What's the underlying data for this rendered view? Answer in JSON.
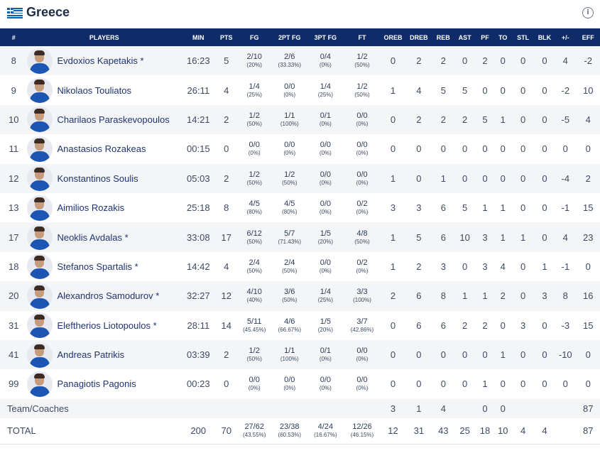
{
  "team": {
    "name": "Greece",
    "flag_icon": "greece-flag-icon",
    "info_icon": "info-icon"
  },
  "columns": [
    "#",
    "PLAYERS",
    "MIN",
    "PTS",
    "FG",
    "2PT FG",
    "3PT FG",
    "FT",
    "OREB",
    "DREB",
    "REB",
    "AST",
    "PF",
    "TO",
    "STL",
    "BLK",
    "+/-",
    "EFF"
  ],
  "players": [
    {
      "num": "8",
      "name": "Evdoxios Kapetakis *",
      "min": "16:23",
      "pts": "5",
      "fg": "2/10",
      "fg_pct": "(20%)",
      "fg2": "2/6",
      "fg2_pct": "(33.33%)",
      "fg3": "0/4",
      "fg3_pct": "(0%)",
      "ft": "1/2",
      "ft_pct": "(50%)",
      "oreb": "0",
      "dreb": "2",
      "reb": "2",
      "ast": "0",
      "pf": "2",
      "to": "0",
      "stl": "0",
      "blk": "0",
      "pm": "4",
      "eff": "-2"
    },
    {
      "num": "9",
      "name": "Nikolaos Touliatos",
      "min": "26:11",
      "pts": "4",
      "fg": "1/4",
      "fg_pct": "(25%)",
      "fg2": "0/0",
      "fg2_pct": "(0%)",
      "fg3": "1/4",
      "fg3_pct": "(25%)",
      "ft": "1/2",
      "ft_pct": "(50%)",
      "oreb": "1",
      "dreb": "4",
      "reb": "5",
      "ast": "5",
      "pf": "0",
      "to": "0",
      "stl": "0",
      "blk": "0",
      "pm": "-2",
      "eff": "10"
    },
    {
      "num": "10",
      "name": "Charilaos Paraskevopoulos",
      "min": "14:21",
      "pts": "2",
      "fg": "1/2",
      "fg_pct": "(50%)",
      "fg2": "1/1",
      "fg2_pct": "(100%)",
      "fg3": "0/1",
      "fg3_pct": "(0%)",
      "ft": "0/0",
      "ft_pct": "(0%)",
      "oreb": "0",
      "dreb": "2",
      "reb": "2",
      "ast": "2",
      "pf": "5",
      "to": "1",
      "stl": "0",
      "blk": "0",
      "pm": "-5",
      "eff": "4"
    },
    {
      "num": "11",
      "name": "Anastasios Rozakeas",
      "min": "00:15",
      "pts": "0",
      "fg": "0/0",
      "fg_pct": "(0%)",
      "fg2": "0/0",
      "fg2_pct": "(0%)",
      "fg3": "0/0",
      "fg3_pct": "(0%)",
      "ft": "0/0",
      "ft_pct": "(0%)",
      "oreb": "0",
      "dreb": "0",
      "reb": "0",
      "ast": "0",
      "pf": "0",
      "to": "0",
      "stl": "0",
      "blk": "0",
      "pm": "0",
      "eff": "0"
    },
    {
      "num": "12",
      "name": "Konstantinos Soulis",
      "min": "05:03",
      "pts": "2",
      "fg": "1/2",
      "fg_pct": "(50%)",
      "fg2": "1/2",
      "fg2_pct": "(50%)",
      "fg3": "0/0",
      "fg3_pct": "(0%)",
      "ft": "0/0",
      "ft_pct": "(0%)",
      "oreb": "1",
      "dreb": "0",
      "reb": "1",
      "ast": "0",
      "pf": "0",
      "to": "0",
      "stl": "0",
      "blk": "0",
      "pm": "-4",
      "eff": "2"
    },
    {
      "num": "13",
      "name": "Aimilios Rozakis",
      "min": "25:18",
      "pts": "8",
      "fg": "4/5",
      "fg_pct": "(80%)",
      "fg2": "4/5",
      "fg2_pct": "(80%)",
      "fg3": "0/0",
      "fg3_pct": "(0%)",
      "ft": "0/2",
      "ft_pct": "(0%)",
      "oreb": "3",
      "dreb": "3",
      "reb": "6",
      "ast": "5",
      "pf": "1",
      "to": "1",
      "stl": "0",
      "blk": "0",
      "pm": "-1",
      "eff": "15"
    },
    {
      "num": "17",
      "name": "Neoklis Avdalas *",
      "min": "33:08",
      "pts": "17",
      "fg": "6/12",
      "fg_pct": "(50%)",
      "fg2": "5/7",
      "fg2_pct": "(71.43%)",
      "fg3": "1/5",
      "fg3_pct": "(20%)",
      "ft": "4/8",
      "ft_pct": "(50%)",
      "oreb": "1",
      "dreb": "5",
      "reb": "6",
      "ast": "10",
      "pf": "3",
      "to": "1",
      "stl": "1",
      "blk": "0",
      "pm": "4",
      "eff": "23"
    },
    {
      "num": "18",
      "name": "Stefanos Spartalis *",
      "min": "14:42",
      "pts": "4",
      "fg": "2/4",
      "fg_pct": "(50%)",
      "fg2": "2/4",
      "fg2_pct": "(50%)",
      "fg3": "0/0",
      "fg3_pct": "(0%)",
      "ft": "0/2",
      "ft_pct": "(0%)",
      "oreb": "1",
      "dreb": "2",
      "reb": "3",
      "ast": "0",
      "pf": "3",
      "to": "4",
      "stl": "0",
      "blk": "1",
      "pm": "-1",
      "eff": "0"
    },
    {
      "num": "20",
      "name": "Alexandros Samodurov *",
      "min": "32:27",
      "pts": "12",
      "fg": "4/10",
      "fg_pct": "(40%)",
      "fg2": "3/6",
      "fg2_pct": "(50%)",
      "fg3": "1/4",
      "fg3_pct": "(25%)",
      "ft": "3/3",
      "ft_pct": "(100%)",
      "oreb": "2",
      "dreb": "6",
      "reb": "8",
      "ast": "1",
      "pf": "1",
      "to": "2",
      "stl": "0",
      "blk": "3",
      "pm": "8",
      "eff": "16"
    },
    {
      "num": "31",
      "name": "Eleftherios Liotopoulos *",
      "min": "28:11",
      "pts": "14",
      "fg": "5/11",
      "fg_pct": "(45.45%)",
      "fg2": "4/6",
      "fg2_pct": "(66.67%)",
      "fg3": "1/5",
      "fg3_pct": "(20%)",
      "ft": "3/7",
      "ft_pct": "(42.86%)",
      "oreb": "0",
      "dreb": "6",
      "reb": "6",
      "ast": "2",
      "pf": "2",
      "to": "0",
      "stl": "3",
      "blk": "0",
      "pm": "-3",
      "eff": "15"
    },
    {
      "num": "41",
      "name": "Andreas Patrikis",
      "min": "03:39",
      "pts": "2",
      "fg": "1/2",
      "fg_pct": "(50%)",
      "fg2": "1/1",
      "fg2_pct": "(100%)",
      "fg3": "0/1",
      "fg3_pct": "(0%)",
      "ft": "0/0",
      "ft_pct": "(0%)",
      "oreb": "0",
      "dreb": "0",
      "reb": "0",
      "ast": "0",
      "pf": "0",
      "to": "1",
      "stl": "0",
      "blk": "0",
      "pm": "-10",
      "eff": "0"
    },
    {
      "num": "99",
      "name": "Panagiotis Pagonis",
      "min": "00:23",
      "pts": "0",
      "fg": "0/0",
      "fg_pct": "(0%)",
      "fg2": "0/0",
      "fg2_pct": "(0%)",
      "fg3": "0/0",
      "fg3_pct": "(0%)",
      "ft": "0/0",
      "ft_pct": "(0%)",
      "oreb": "0",
      "dreb": "0",
      "reb": "0",
      "ast": "0",
      "pf": "1",
      "to": "0",
      "stl": "0",
      "blk": "0",
      "pm": "0",
      "eff": "0"
    }
  ],
  "team_coaches": {
    "label": "Team/Coaches",
    "oreb": "3",
    "dreb": "1",
    "reb": "4",
    "pf": "0",
    "to": "0",
    "eff": "87"
  },
  "total": {
    "label": "TOTAL",
    "min": "200",
    "pts": "70",
    "fg": "27/62",
    "fg_pct": "(43.55%)",
    "fg2": "23/38",
    "fg2_pct": "(60.53%)",
    "fg3": "4/24",
    "fg3_pct": "(16.67%)",
    "ft": "12/26",
    "ft_pct": "(46.15%)",
    "oreb": "12",
    "dreb": "31",
    "reb": "43",
    "ast": "25",
    "pf": "18",
    "to": "10",
    "stl": "4",
    "blk": "4",
    "eff": "87"
  },
  "colors": {
    "header_bg": "#0f2c69",
    "player_link": "#1f3370",
    "row_alt": "#f4f5f7"
  }
}
